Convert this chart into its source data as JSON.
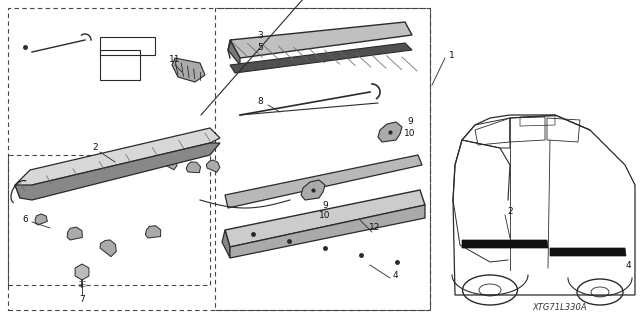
{
  "bg_color": "#ffffff",
  "line_color": "#2a2a2a",
  "dark_color": "#111111",
  "gray_light": "#cccccc",
  "gray_mid": "#999999",
  "gray_dark": "#666666",
  "ref_code": "XTG71L330A"
}
